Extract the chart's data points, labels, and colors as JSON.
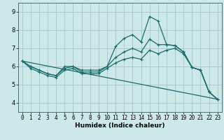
{
  "xlabel": "Humidex (Indice chaleur)",
  "bg_color": "#cce8e8",
  "grid_color": "#aacccc",
  "line_color": "#1a6b6b",
  "xlim": [
    -0.5,
    23.5
  ],
  "ylim": [
    3.5,
    9.5
  ],
  "yticks": [
    4,
    5,
    6,
    7,
    8,
    9
  ],
  "xticks": [
    0,
    1,
    2,
    3,
    4,
    5,
    6,
    7,
    8,
    9,
    10,
    11,
    12,
    13,
    14,
    15,
    16,
    17,
    18,
    19,
    20,
    21,
    22,
    23
  ],
  "line_main": {
    "x": [
      0,
      1,
      2,
      3,
      4,
      5,
      6,
      7,
      8,
      9,
      10,
      11,
      12,
      13,
      14,
      15,
      16,
      17,
      18,
      19,
      20,
      21,
      22,
      23
    ],
    "y": [
      6.3,
      6.0,
      5.8,
      5.6,
      5.5,
      6.0,
      6.0,
      5.7,
      5.7,
      5.7,
      6.0,
      7.1,
      7.55,
      7.75,
      7.35,
      8.75,
      8.5,
      7.2,
      7.15,
      6.8,
      5.95,
      5.8,
      4.6,
      4.2
    ]
  },
  "line_diag": {
    "x": [
      0,
      23
    ],
    "y": [
      6.3,
      4.2
    ]
  },
  "line_mid1": {
    "x": [
      0,
      1,
      2,
      3,
      4,
      5,
      6,
      7,
      8,
      9,
      10,
      11,
      12,
      13,
      14,
      15,
      16,
      17,
      18,
      19,
      20,
      21,
      22,
      23
    ],
    "y": [
      6.3,
      6.0,
      5.8,
      5.6,
      5.5,
      5.9,
      6.0,
      5.8,
      5.8,
      5.8,
      6.0,
      6.5,
      6.8,
      7.0,
      6.8,
      7.5,
      7.2,
      7.2,
      7.15,
      6.8,
      5.95,
      5.8,
      4.6,
      4.2
    ]
  },
  "line_mid2": {
    "x": [
      0,
      1,
      2,
      3,
      4,
      5,
      6,
      7,
      8,
      9,
      10,
      11,
      12,
      13,
      14,
      15,
      16,
      17,
      18,
      19,
      20,
      21,
      22,
      23
    ],
    "y": [
      6.3,
      5.9,
      5.7,
      5.5,
      5.4,
      5.8,
      5.9,
      5.6,
      5.6,
      5.6,
      5.9,
      6.2,
      6.4,
      6.5,
      6.4,
      6.9,
      6.7,
      6.9,
      7.0,
      6.7,
      5.95,
      5.8,
      4.6,
      4.2
    ]
  }
}
